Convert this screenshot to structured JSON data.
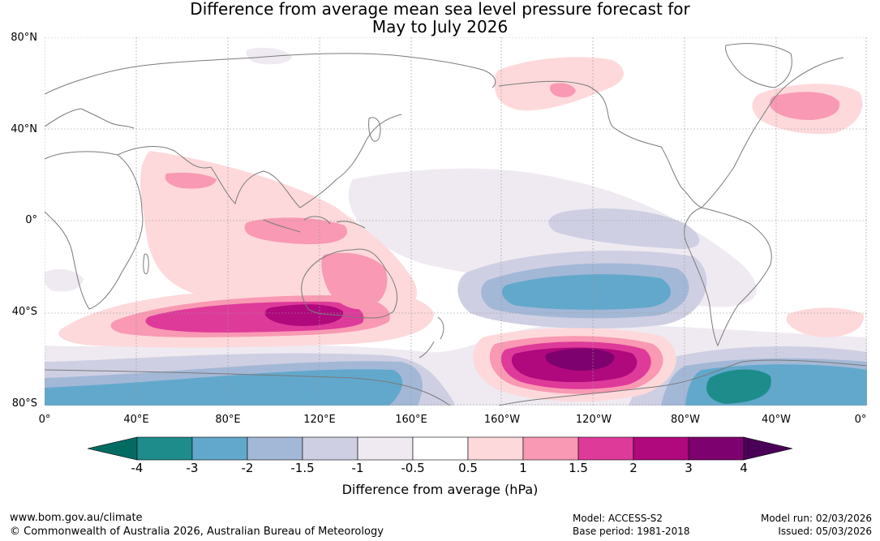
{
  "title": {
    "line1": "Difference from average mean sea level pressure forecast for",
    "line2": "May to July 2026"
  },
  "map": {
    "lat_labels": [
      "80°N",
      "40°N",
      "0°",
      "40°S",
      "80°S"
    ],
    "lon_labels": [
      "0°",
      "40°E",
      "80°E",
      "120°E",
      "160°E",
      "160°W",
      "120°W",
      "80°W",
      "40°W",
      "0°"
    ],
    "colors": {
      "ocean": "#ffffff",
      "coast": "#7a7a7a",
      "grid": "#999999"
    }
  },
  "legend": {
    "ticks": [
      "-4",
      "-3",
      "-2",
      "-1.5",
      "-1",
      "-0.5",
      "0.5",
      "1",
      "1.5",
      "2",
      "3",
      "4"
    ],
    "colors": [
      "#1f8c8c",
      "#62a8cc",
      "#a3b8d6",
      "#cfcfe3",
      "#efeaf1",
      "#ffffff",
      "#fdd9db",
      "#f999b3",
      "#de3a9a",
      "#b0087d",
      "#7d016e"
    ],
    "under_color": "#046b63",
    "over_color": "#4a0057",
    "label": "Difference from average (hPa)"
  },
  "footer": {
    "website": "www.bom.gov.au/climate",
    "copyright": "© Commonwealth of Australia 2026, Australian Bureau of Meteorology",
    "model": "Model: ACCESS-S2",
    "base_period": "Base period: 1981-2018",
    "model_run": "Model run: 02/03/2026",
    "issued": "Issued: 05/03/2026"
  }
}
